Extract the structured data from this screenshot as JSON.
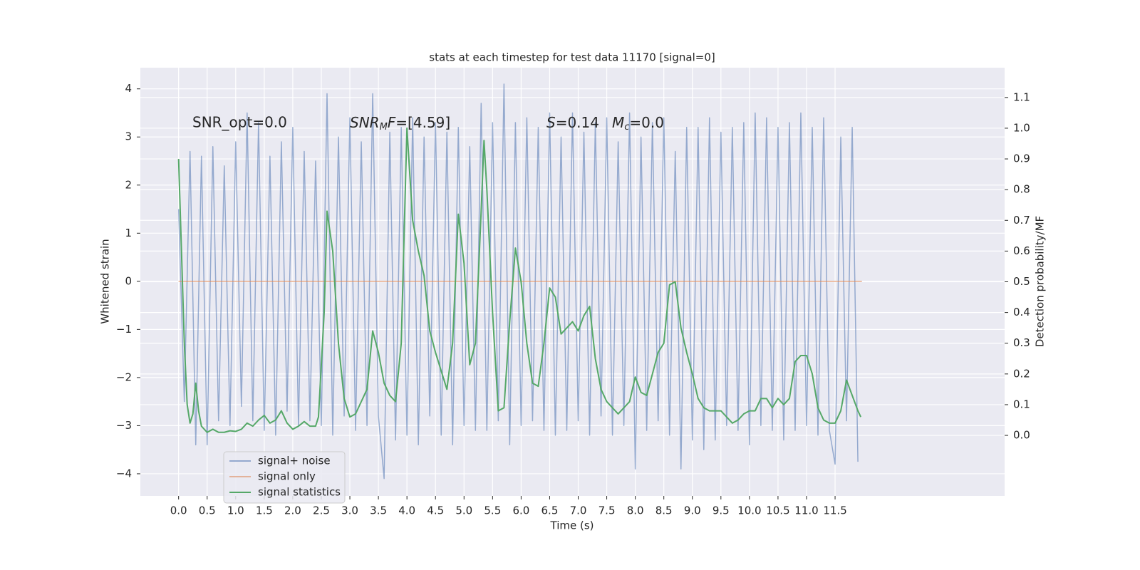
{
  "chart_data": {
    "type": "line",
    "title": "stats at each timestep for test data 11170 [signal=0]",
    "xlabel": "Time (s)",
    "ylabel": "Whitened strain",
    "y2label": "Detection probability/MF",
    "annotations": [
      "SNR_opt=0.0",
      [
        "SNR",
        "M",
        "F",
        "=[4.59]"
      ],
      [
        "S",
        "=0.14",
        "M",
        "c",
        "=0.0"
      ]
    ],
    "xlim": [
      -0.67,
      14.47
    ],
    "ylim": [
      -4.46,
      4.44
    ],
    "y2lim": [
      -0.197,
      1.197
    ],
    "xticks": [
      {
        "value": 0,
        "label": "0.0"
      },
      0.5,
      {
        "value": 1,
        "label": "1.0"
      },
      1.5,
      {
        "value": 2,
        "label": "2.0"
      },
      2.5,
      {
        "value": 3,
        "label": "3.0"
      },
      3.5,
      {
        "value": 4,
        "label": "4.0"
      },
      4.5,
      {
        "value": 5,
        "label": "5.0"
      },
      5.5,
      {
        "value": 6,
        "label": "6.0"
      },
      6.5,
      {
        "value": 7,
        "label": "7.0"
      },
      7.5,
      {
        "value": 8,
        "label": "8.0"
      },
      8.5,
      {
        "value": 9,
        "label": "9.0"
      },
      9.5,
      {
        "value": 10,
        "label": "10.0"
      },
      10.5,
      {
        "value": 11,
        "label": "11.0"
      },
      11.5
    ],
    "yticks": [
      {
        "value": -4,
        "label": "−4"
      },
      {
        "value": -3,
        "label": "−3"
      },
      {
        "value": -2,
        "label": "−2"
      },
      {
        "value": -1,
        "label": "−1"
      },
      0,
      1,
      2,
      3,
      4
    ],
    "y2ticks": [
      {
        "value": 0,
        "label": "0.0"
      },
      0.1,
      0.2,
      0.3,
      0.4,
      0.5,
      0.6,
      0.7,
      0.8,
      0.9,
      {
        "value": 1,
        "label": "1.0"
      },
      1.1
    ],
    "grid": true,
    "legend": "lower left",
    "series": [
      {
        "name": "signal+ noise",
        "color": "#4c72b0",
        "x": [
          0,
          0.1,
          0.2,
          0.3,
          0.4,
          0.5,
          0.6,
          0.7,
          0.8,
          0.9,
          1,
          1.1,
          1.2,
          1.3,
          1.4,
          1.5,
          1.6,
          1.7,
          1.8,
          1.9,
          2,
          2.1,
          2.2,
          2.3,
          2.4,
          2.5,
          2.6,
          2.7,
          2.8,
          2.9,
          3,
          3.1,
          3.2,
          3.3,
          3.4,
          3.5,
          3.6,
          3.7,
          3.8,
          3.9,
          4,
          4.1,
          4.2,
          4.3,
          4.4,
          4.5,
          4.6,
          4.7,
          4.8,
          4.9,
          5,
          5.1,
          5.2,
          5.3,
          5.4,
          5.5,
          5.6,
          5.7,
          5.8,
          5.9,
          6,
          6.1,
          6.2,
          6.3,
          6.4,
          6.5,
          6.6,
          6.7,
          6.8,
          6.9,
          7,
          7.1,
          7.2,
          7.3,
          7.4,
          7.5,
          7.6,
          7.7,
          7.8,
          7.9,
          8,
          8.1,
          8.2,
          8.3,
          8.4,
          8.5,
          8.6,
          8.7,
          8.8,
          8.9,
          9,
          9.1,
          9.2,
          9.3,
          9.4,
          9.5,
          9.6,
          9.7,
          9.8,
          9.9,
          10,
          10.1,
          10.2,
          10.3,
          10.4,
          10.5,
          10.6,
          10.7,
          10.8,
          10.9,
          11,
          11.1,
          11.2,
          11.3,
          11.4,
          11.5,
          11.6,
          11.7,
          11.8,
          11.9
        ],
        "values": [
          1.5,
          -2.5,
          2.7,
          -3.4,
          2.6,
          -3.4,
          2.8,
          -2.9,
          2.4,
          -3.0,
          2.9,
          -2.6,
          3.5,
          -2.9,
          3.3,
          -3.1,
          2.6,
          -3.2,
          2.9,
          -2.7,
          3.2,
          -3.0,
          2.7,
          -2.9,
          2.5,
          -3.0,
          3.9,
          -3.2,
          3.0,
          -2.8,
          3.4,
          -3.1,
          2.9,
          -3.0,
          3.9,
          -2.8,
          -4.1,
          3.1,
          -3.3,
          3.2,
          -3.2,
          3.4,
          -3.4,
          3.0,
          -2.8,
          3.3,
          -3.2,
          3.1,
          -3.4,
          3.2,
          -3.0,
          2.8,
          -3.1,
          3.7,
          -3.1,
          3.3,
          -2.9,
          4.1,
          -3.4,
          3.3,
          -3.0,
          3.4,
          -2.9,
          3.2,
          -3.1,
          3.5,
          -3.2,
          3.0,
          -3.1,
          3.5,
          -2.9,
          3.1,
          -3.2,
          3.3,
          -2.8,
          3.4,
          -3.2,
          2.9,
          -3.0,
          3.5,
          -3.9,
          3.0,
          -3.1,
          3.3,
          -2.9,
          3.4,
          -3.2,
          2.7,
          -3.9,
          3.2,
          -3.3,
          3.2,
          -3.5,
          3.4,
          -3.3,
          3.1,
          -3.0,
          3.2,
          -3.1,
          3.3,
          -3.4,
          3.5,
          -3.0,
          3.4,
          -3.1,
          3.2,
          -3.3,
          3.3,
          -3.1,
          3.5,
          -3.0,
          3.2,
          -3.2,
          3.4,
          -3.1,
          -3.8,
          3.0,
          -2.9,
          3.2,
          -3.75
        ]
      },
      {
        "name": "signal only",
        "color": "#dd8452",
        "x": [
          0,
          11.97
        ],
        "values": [
          0,
          0
        ]
      },
      {
        "name": "signal statistics",
        "color": "#55a868",
        "axis": "y2",
        "x": [
          0,
          0.05,
          0.1,
          0.15,
          0.2,
          0.25,
          0.3,
          0.35,
          0.4,
          0.5,
          0.6,
          0.7,
          0.8,
          0.9,
          1,
          1.1,
          1.2,
          1.3,
          1.4,
          1.5,
          1.6,
          1.7,
          1.8,
          1.9,
          2,
          2.1,
          2.2,
          2.3,
          2.4,
          2.45,
          2.55,
          2.6,
          2.7,
          2.8,
          2.9,
          3,
          3.1,
          3.2,
          3.3,
          3.4,
          3.5,
          3.6,
          3.7,
          3.8,
          3.9,
          4,
          4.1,
          4.2,
          4.3,
          4.4,
          4.5,
          4.6,
          4.7,
          4.8,
          4.9,
          5,
          5.1,
          5.2,
          5.3,
          5.35,
          5.4,
          5.5,
          5.6,
          5.7,
          5.8,
          5.9,
          6,
          6.1,
          6.2,
          6.3,
          6.4,
          6.5,
          6.6,
          6.7,
          6.8,
          6.9,
          7,
          7.1,
          7.2,
          7.3,
          7.4,
          7.5,
          7.6,
          7.7,
          7.8,
          7.9,
          8,
          8.1,
          8.2,
          8.3,
          8.4,
          8.5,
          8.6,
          8.7,
          8.8,
          8.9,
          9,
          9.1,
          9.2,
          9.3,
          9.5,
          9.6,
          9.7,
          9.8,
          9.9,
          10,
          10.1,
          10.2,
          10.3,
          10.4,
          10.5,
          10.6,
          10.7,
          10.8,
          10.9,
          11,
          11.1,
          11.2,
          11.3,
          11.4,
          11.5,
          11.6,
          11.7,
          11.8,
          11.9,
          11.95
        ],
        "values": [
          0.9,
          0.6,
          0.3,
          0.1,
          0.04,
          0.07,
          0.17,
          0.08,
          0.03,
          0.01,
          0.02,
          0.01,
          0.01,
          0.015,
          0.013,
          0.02,
          0.04,
          0.03,
          0.05,
          0.065,
          0.04,
          0.05,
          0.08,
          0.04,
          0.02,
          0.03,
          0.045,
          0.03,
          0.03,
          0.06,
          0.4,
          0.73,
          0.6,
          0.3,
          0.12,
          0.06,
          0.07,
          0.11,
          0.15,
          0.34,
          0.27,
          0.17,
          0.13,
          0.11,
          0.3,
          1.0,
          0.7,
          0.6,
          0.52,
          0.34,
          0.27,
          0.21,
          0.15,
          0.3,
          0.72,
          0.56,
          0.23,
          0.3,
          0.73,
          0.96,
          0.8,
          0.4,
          0.08,
          0.09,
          0.37,
          0.61,
          0.5,
          0.3,
          0.17,
          0.16,
          0.3,
          0.48,
          0.45,
          0.33,
          0.35,
          0.37,
          0.34,
          0.39,
          0.42,
          0.25,
          0.15,
          0.11,
          0.09,
          0.07,
          0.09,
          0.11,
          0.19,
          0.14,
          0.13,
          0.2,
          0.27,
          0.3,
          0.49,
          0.5,
          0.35,
          0.27,
          0.2,
          0.12,
          0.09,
          0.08,
          0.08,
          0.06,
          0.04,
          0.05,
          0.07,
          0.08,
          0.08,
          0.12,
          0.12,
          0.09,
          0.12,
          0.1,
          0.12,
          0.24,
          0.26,
          0.26,
          0.2,
          0.09,
          0.05,
          0.04,
          0.04,
          0.08,
          0.18,
          0.13,
          0.08,
          0.06
        ]
      }
    ]
  }
}
